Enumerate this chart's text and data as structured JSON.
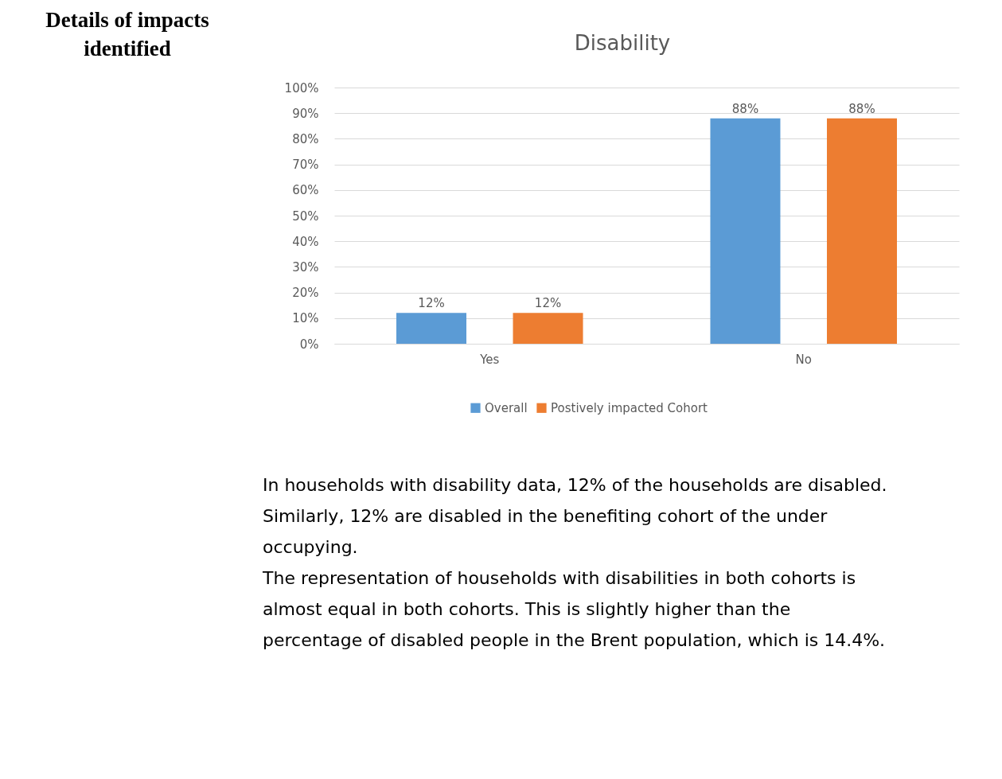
{
  "chart_data": {
    "type": "bar",
    "title": "Disability",
    "categories": [
      "Yes",
      "No"
    ],
    "series": [
      {
        "name": "Overall",
        "color": "#5b9bd5",
        "values": [
          12,
          88
        ],
        "value_labels": [
          "12%",
          "88%"
        ]
      },
      {
        "name": "Postively impacted Cohort",
        "color": "#ed7d31",
        "values": [
          12,
          88
        ],
        "value_labels": [
          "12%",
          "88%"
        ]
      }
    ],
    "ylim": [
      0,
      100
    ],
    "yticks": [
      {
        "value": 0,
        "label": "0%"
      },
      {
        "value": 10,
        "label": "10%"
      },
      {
        "value": 20,
        "label": "20%"
      },
      {
        "value": 30,
        "label": "30%"
      },
      {
        "value": 40,
        "label": "40%"
      },
      {
        "value": 50,
        "label": "50%"
      },
      {
        "value": 60,
        "label": "60%"
      },
      {
        "value": 70,
        "label": "70%"
      },
      {
        "value": 80,
        "label": "80%"
      },
      {
        "value": 90,
        "label": "90%"
      },
      {
        "value": 100,
        "label": "100%"
      }
    ],
    "grid": "y",
    "legend": "bottom",
    "annotations": [
      "Details of impacts identified",
      "In households with disability data, 12% of the households are disabled. Similarly, 12% are disabled in the benefiting cohort of the under occupying.",
      "The representation of households with disabilities in both cohorts is almost equal in both cohorts. This is slightly higher than the percentage of disabled people in the Brent population, which is 14.4%."
    ]
  }
}
